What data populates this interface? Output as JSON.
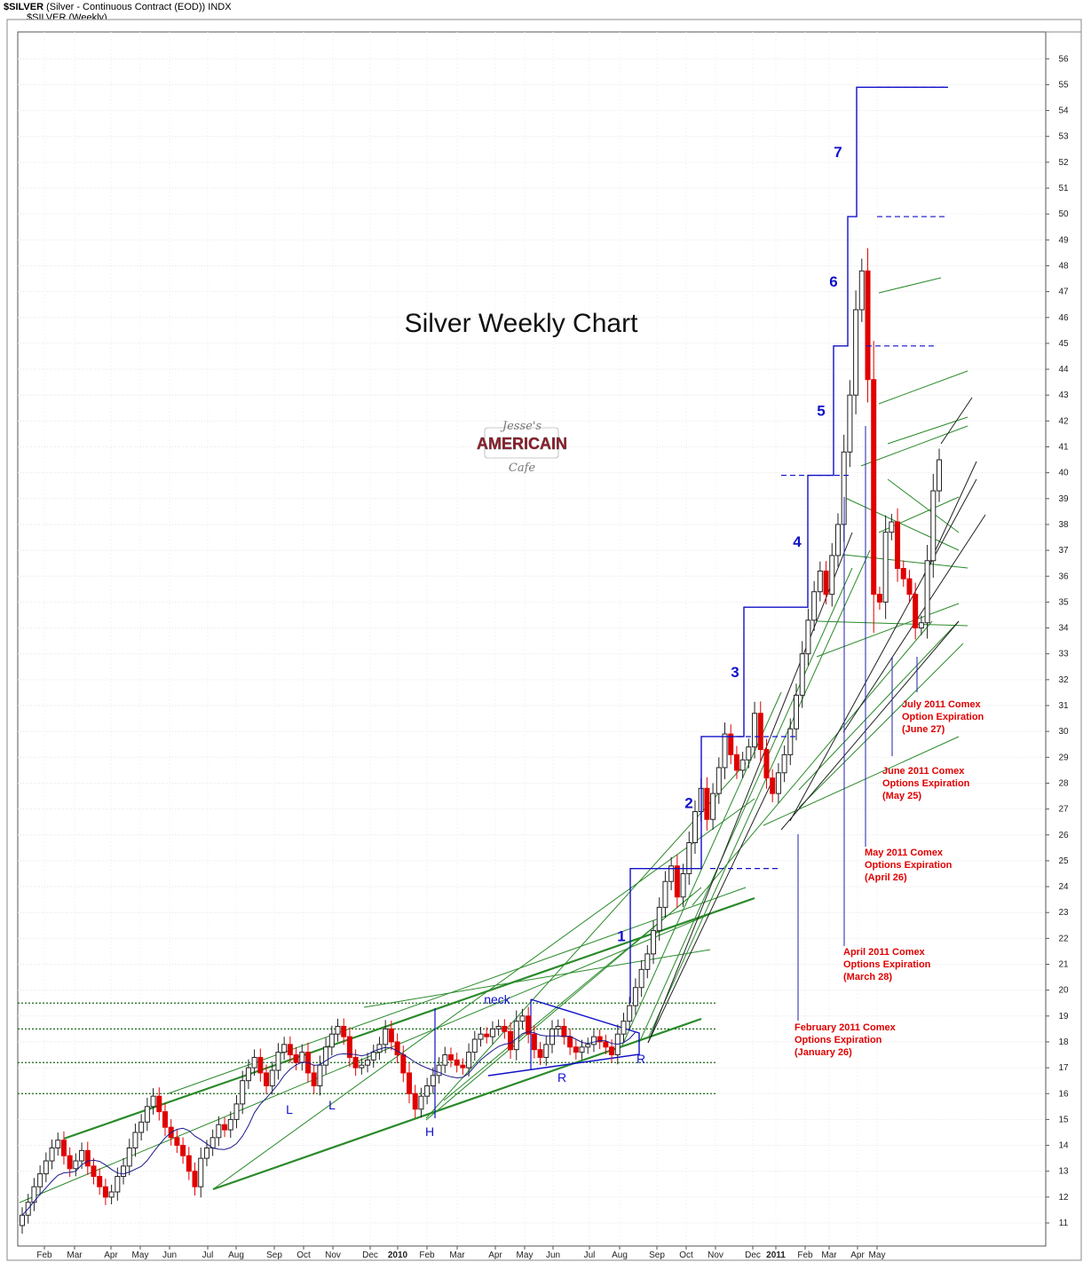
{
  "header": {
    "symbol": "$SILVER",
    "description": "(Silver - Continuous Contract (EOD))",
    "exchange": "INDX",
    "subtitle": "$SILVER (Weekly)"
  },
  "logo": {
    "line1": "Jesse's",
    "line2": "AMERICAIN",
    "line3": "Cafe"
  },
  "chart_data": {
    "type": "candlestick",
    "title": "Silver Weekly Chart",
    "ylim": [
      10.5,
      57
    ],
    "y_ticks": [
      11,
      12,
      13,
      14,
      15,
      16,
      17,
      18,
      19,
      20,
      21,
      22,
      23,
      24,
      25,
      26,
      27,
      28,
      29,
      30,
      31,
      32,
      33,
      34,
      35,
      36,
      37,
      38,
      39,
      40,
      41,
      42,
      43,
      44,
      45,
      46,
      47,
      48,
      49,
      50,
      51,
      52,
      53,
      54,
      55,
      56
    ],
    "x_ticks": [
      "Feb",
      "Mar",
      "Apr",
      "May",
      "Jun",
      "Jul",
      "Aug",
      "Sep",
      "Oct",
      "Nov",
      "Dec",
      "2010",
      "Feb",
      "Mar",
      "Apr",
      "May",
      "Jun",
      "Jul",
      "Aug",
      "Sep",
      "Oct",
      "Nov",
      "Dec",
      "2011",
      "Feb",
      "Mar",
      "Apr",
      "May"
    ],
    "weekly_close": [
      11.3,
      11.8,
      12.4,
      12.9,
      13.4,
      13.9,
      14.2,
      13.6,
      13.1,
      13.4,
      13.8,
      13.2,
      12.8,
      12.4,
      12.0,
      12.2,
      12.8,
      13.2,
      13.9,
      14.5,
      14.9,
      15.5,
      15.9,
      15.3,
      14.7,
      14.3,
      14.0,
      13.6,
      13.0,
      12.4,
      13.5,
      13.9,
      14.3,
      14.8,
      14.6,
      15.0,
      15.6,
      16.5,
      17.0,
      17.4,
      16.8,
      16.3,
      16.9,
      17.6,
      17.9,
      17.5,
      17.2,
      17.6,
      16.8,
      16.3,
      17.1,
      17.8,
      18.3,
      18.6,
      18.2,
      17.4,
      17.0,
      17.1,
      17.3,
      17.6,
      17.9,
      18.5,
      18.0,
      17.5,
      16.8,
      16.0,
      15.4,
      15.9,
      16.3,
      16.7,
      17.1,
      17.5,
      17.3,
      17.1,
      17.0,
      17.6,
      18.1,
      18.3,
      18.2,
      18.5,
      18.6,
      18.4,
      17.7,
      18.8,
      19.0,
      18.3,
      17.7,
      17.4,
      17.9,
      18.5,
      18.6,
      18.2,
      17.8,
      17.6,
      17.8,
      17.9,
      18.2,
      18.0,
      17.8,
      17.5,
      18.3,
      18.8,
      19.4,
      20.1,
      20.8,
      21.4,
      22.3,
      23.2,
      24.2,
      24.8,
      23.6,
      24.5,
      25.7,
      26.9,
      27.8,
      26.6,
      27.6,
      28.6,
      29.9,
      29.1,
      28.5,
      28.9,
      29.4,
      30.7,
      29.3,
      28.2,
      27.6,
      28.4,
      29.1,
      30.1,
      31.4,
      33.0,
      34.3,
      35.4,
      36.2,
      35.3,
      36.8,
      38.0,
      40.8,
      43.0,
      46.3,
      47.8,
      43.6,
      35.3,
      35.0,
      37.7,
      38.1,
      36.3,
      35.9,
      35.3,
      34.0,
      34.2,
      36.6,
      39.3,
      40.5
    ],
    "key_levels": [
      16.0,
      17.2,
      18.5,
      19.5
    ],
    "waves": [
      {
        "label": "1",
        "from": 19.5,
        "to": 24.7
      },
      {
        "label": "2",
        "from": 24.7,
        "to": 29.8
      },
      {
        "label": "3",
        "from": 29.8,
        "to": 34.8
      },
      {
        "label": "4",
        "from": 34.8,
        "to": 39.9
      },
      {
        "label": "5",
        "from": 39.9,
        "to": 44.9
      },
      {
        "label": "6",
        "from": 44.9,
        "to": 49.9
      },
      {
        "label": "7",
        "from": 49.9,
        "to": 54.9
      }
    ],
    "pattern_labels": [
      "L",
      "L",
      "H",
      "R",
      "R",
      "neck"
    ],
    "annotations": [
      {
        "lines": [
          "February 2011 Comex",
          "Options Expiration",
          "(January 26)"
        ]
      },
      {
        "lines": [
          "April 2011 Comex",
          "Options Expiration",
          "(March 28)"
        ]
      },
      {
        "lines": [
          "May 2011 Comex",
          "Options Expiration",
          "(April 26)"
        ]
      },
      {
        "lines": [
          "June 2011 Comex",
          "Options Expiration",
          "(May 25)"
        ]
      },
      {
        "lines": [
          "July 2011 Comex",
          "Option Expiration",
          "(June 27)"
        ]
      }
    ],
    "colors": {
      "up": "#ffffff",
      "down": "#e00000",
      "trend": "#2a8a2a",
      "wave": "#1010c8",
      "ma": "#1a1a8a",
      "annotation": "#e00000"
    }
  }
}
